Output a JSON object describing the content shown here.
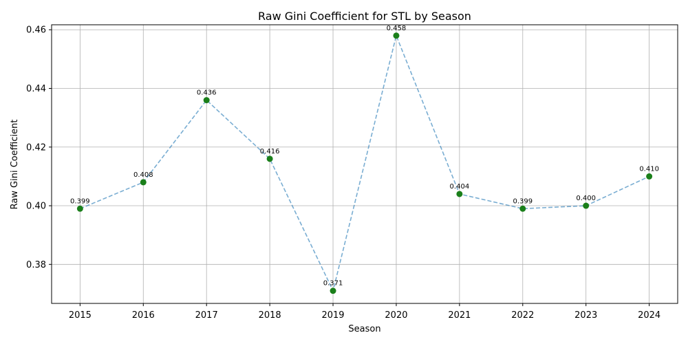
{
  "chart_data": {
    "type": "scatter",
    "title": "Raw Gini Coefficient for STL by Season",
    "xlabel": "Season",
    "ylabel": "Raw Gini Coefficient",
    "x": [
      2015,
      2016,
      2017,
      2018,
      2019,
      2020,
      2021,
      2022,
      2023,
      2024
    ],
    "y": [
      0.399,
      0.408,
      0.436,
      0.416,
      0.371,
      0.458,
      0.404,
      0.399,
      0.4,
      0.41
    ],
    "data_labels": [
      "0.399",
      "0.408",
      "0.436",
      "0.416",
      "0.371",
      "0.458",
      "0.404",
      "0.399",
      "0.400",
      "0.410"
    ],
    "x_ticks": [
      "2015",
      "2016",
      "2017",
      "2018",
      "2019",
      "2020",
      "2021",
      "2022",
      "2023",
      "2024"
    ],
    "y_ticks": [
      0.38,
      0.4,
      0.42,
      0.44,
      0.46
    ],
    "y_tick_labels": [
      "0.38",
      "0.40",
      "0.42",
      "0.44",
      "0.46"
    ],
    "xlim": [
      2014.55,
      2024.45
    ],
    "ylim": [
      0.3667,
      0.4617
    ],
    "grid": true,
    "connecting_line": "dashed",
    "colors": {
      "marker": "#1a7f1a",
      "line": "#1f77b4"
    }
  }
}
